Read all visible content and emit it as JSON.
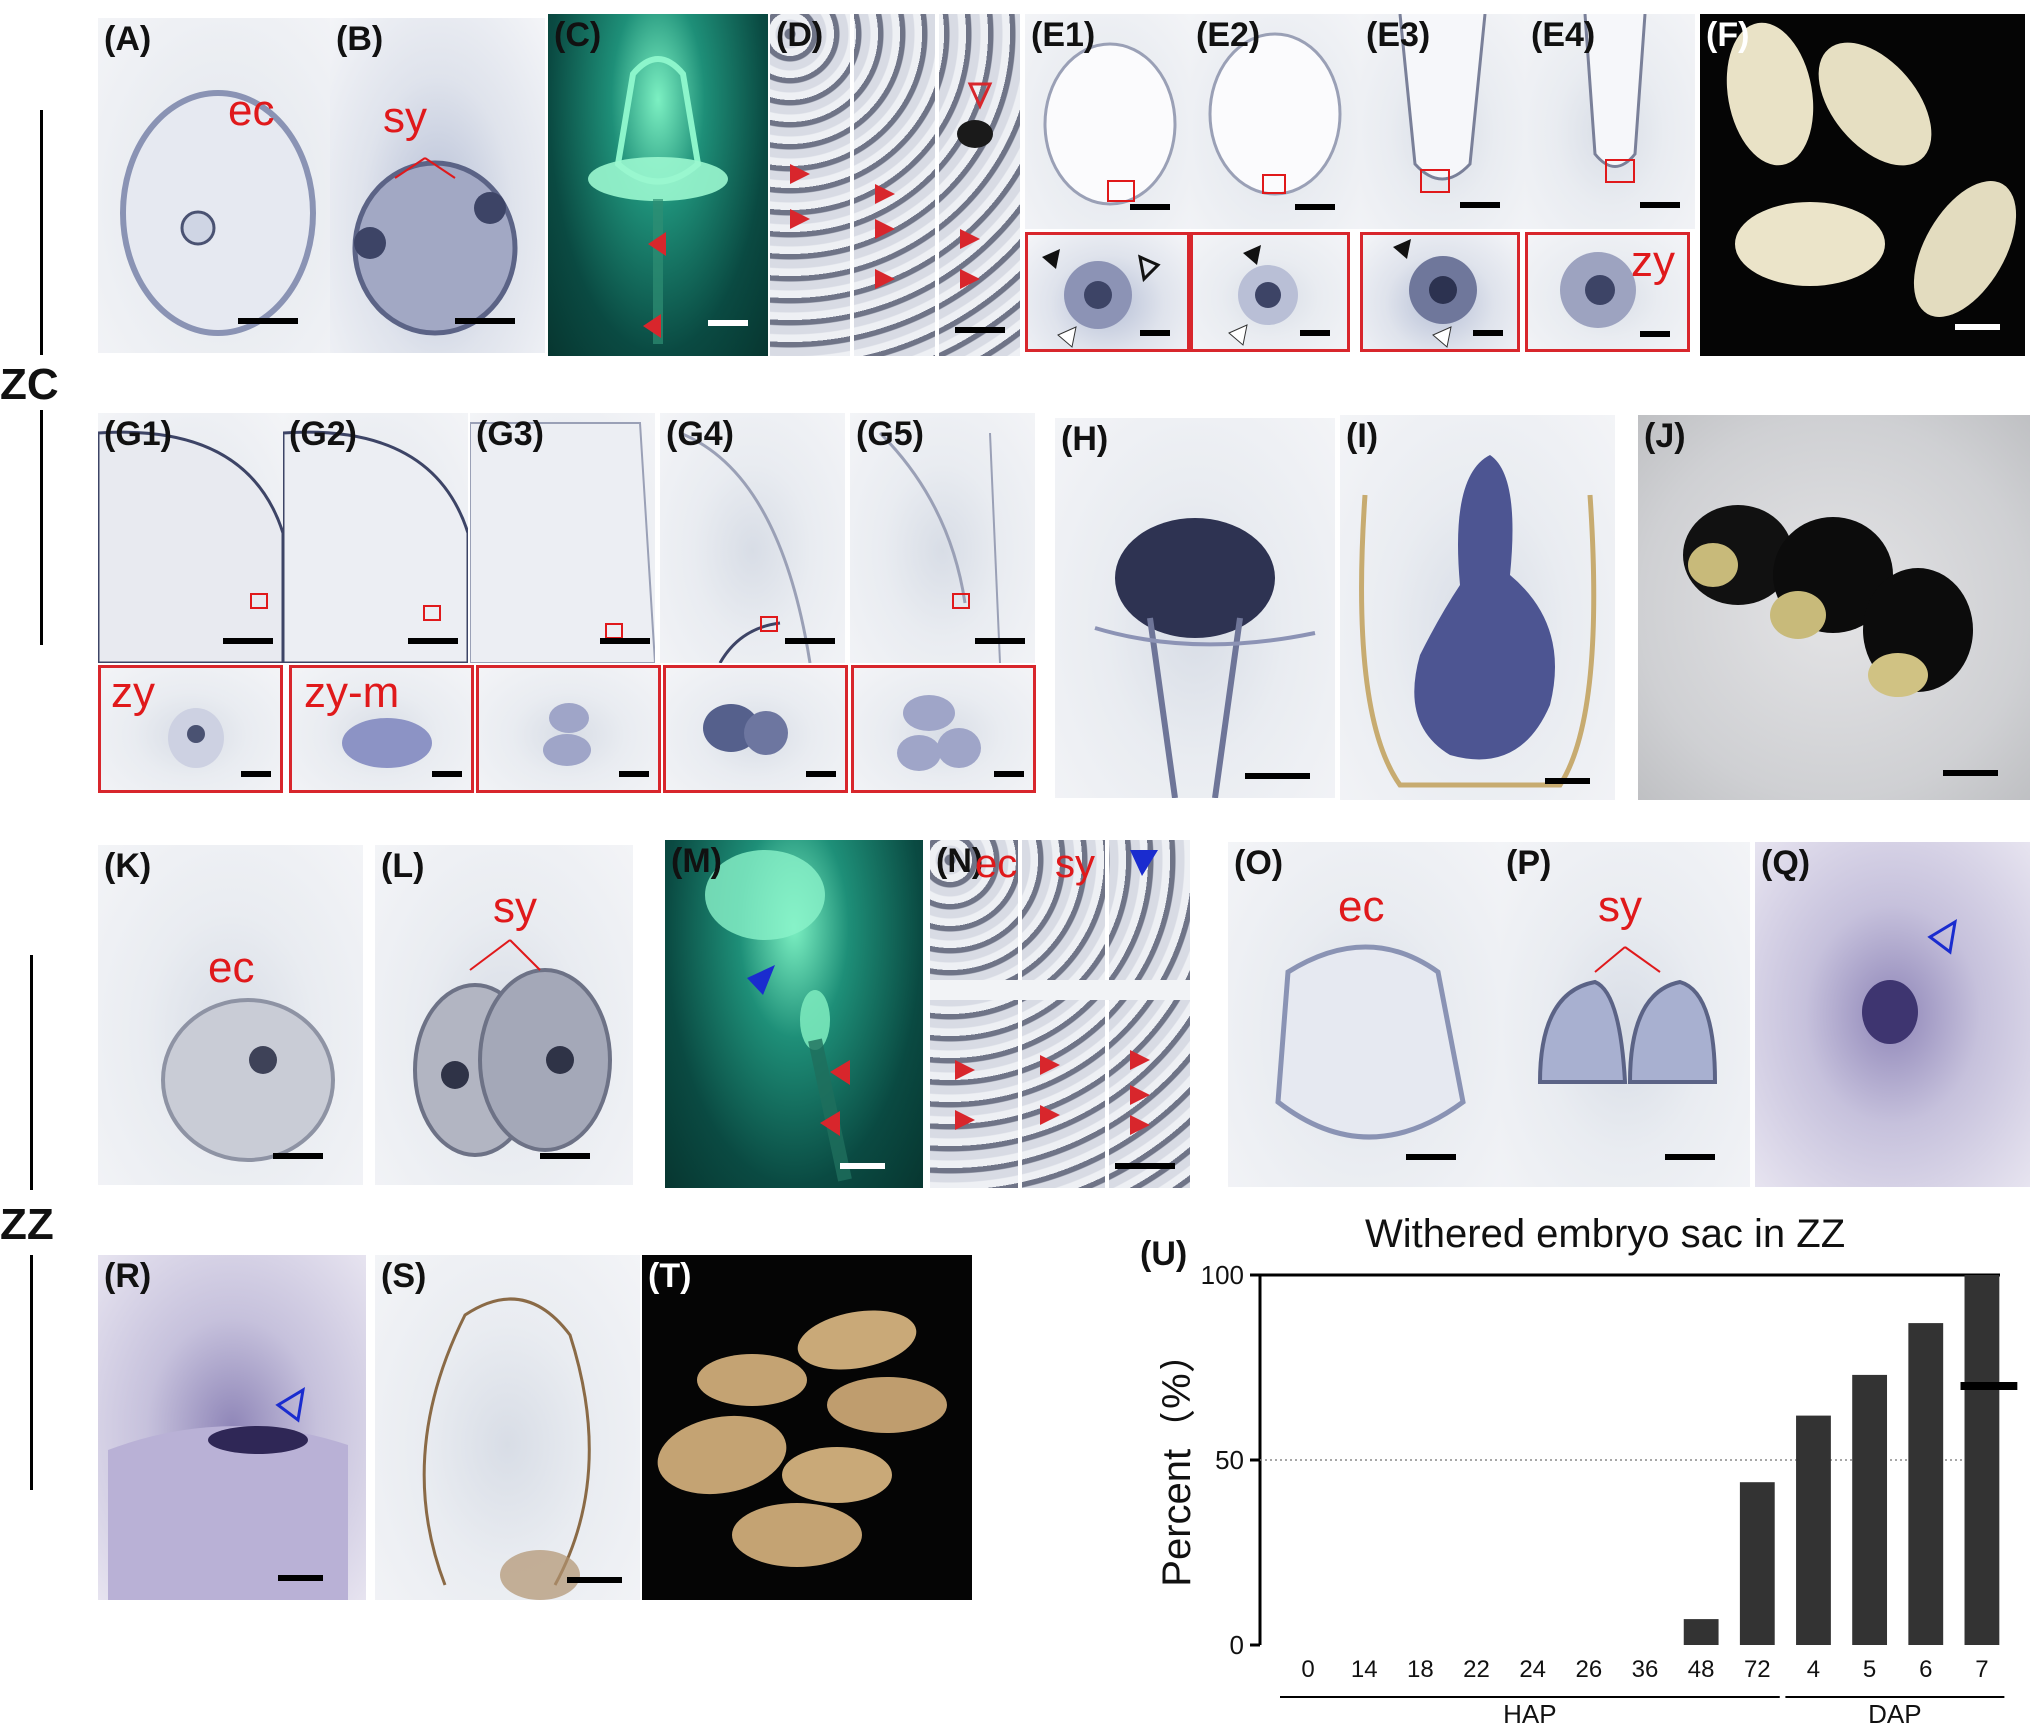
{
  "row_labels": {
    "top": "ZC",
    "bottom": "ZZ"
  },
  "panels": {
    "A": "(A)",
    "B": "(B)",
    "C": "(C)",
    "D": "(D)",
    "E1": "(E1)",
    "E2": "(E2)",
    "E3": "(E3)",
    "E4": "(E4)",
    "F": "(F)",
    "G1": "(G1)",
    "G2": "(G2)",
    "G3": "(G3)",
    "G4": "(G4)",
    "G5": "(G5)",
    "H": "(H)",
    "I": "(I)",
    "J": "(J)",
    "K": "(K)",
    "L": "(L)",
    "M": "(M)",
    "N": "(N)",
    "O": "(O)",
    "P": "(P)",
    "Q": "(Q)",
    "R": "(R)",
    "S": "(S)",
    "T": "(T)",
    "U": "(U)"
  },
  "annotations": {
    "ec": "ec",
    "sy": "sy",
    "zy": "zy",
    "zy_m": "zy-m"
  },
  "colors": {
    "annotation_red": "#e0191b",
    "bar_fill": "#333333",
    "arrow_red": "#d8262c",
    "arrow_blue": "#1a2ccf"
  },
  "chart_data": {
    "type": "bar",
    "title": "Withered embryo sac in ZZ",
    "ylabel": "Percent（%）",
    "xlabel": "",
    "categories": [
      "0",
      "14",
      "18",
      "22",
      "24",
      "26",
      "36",
      "48",
      "72",
      "4",
      "5",
      "6",
      "7"
    ],
    "values": [
      0,
      0,
      0,
      0,
      0,
      0,
      0,
      7,
      44,
      62,
      73,
      87,
      100
    ],
    "ylim": [
      0,
      100
    ],
    "yticks": [
      0,
      50,
      100
    ],
    "reference_line": 50,
    "marker_on_last_bar": 70,
    "groups": [
      {
        "label": "HAP",
        "categories": [
          "0",
          "14",
          "18",
          "22",
          "24",
          "26",
          "36",
          "48",
          "72"
        ]
      },
      {
        "label": "DAP",
        "categories": [
          "4",
          "5",
          "6",
          "7"
        ]
      }
    ],
    "grid": false,
    "legend": "none"
  }
}
